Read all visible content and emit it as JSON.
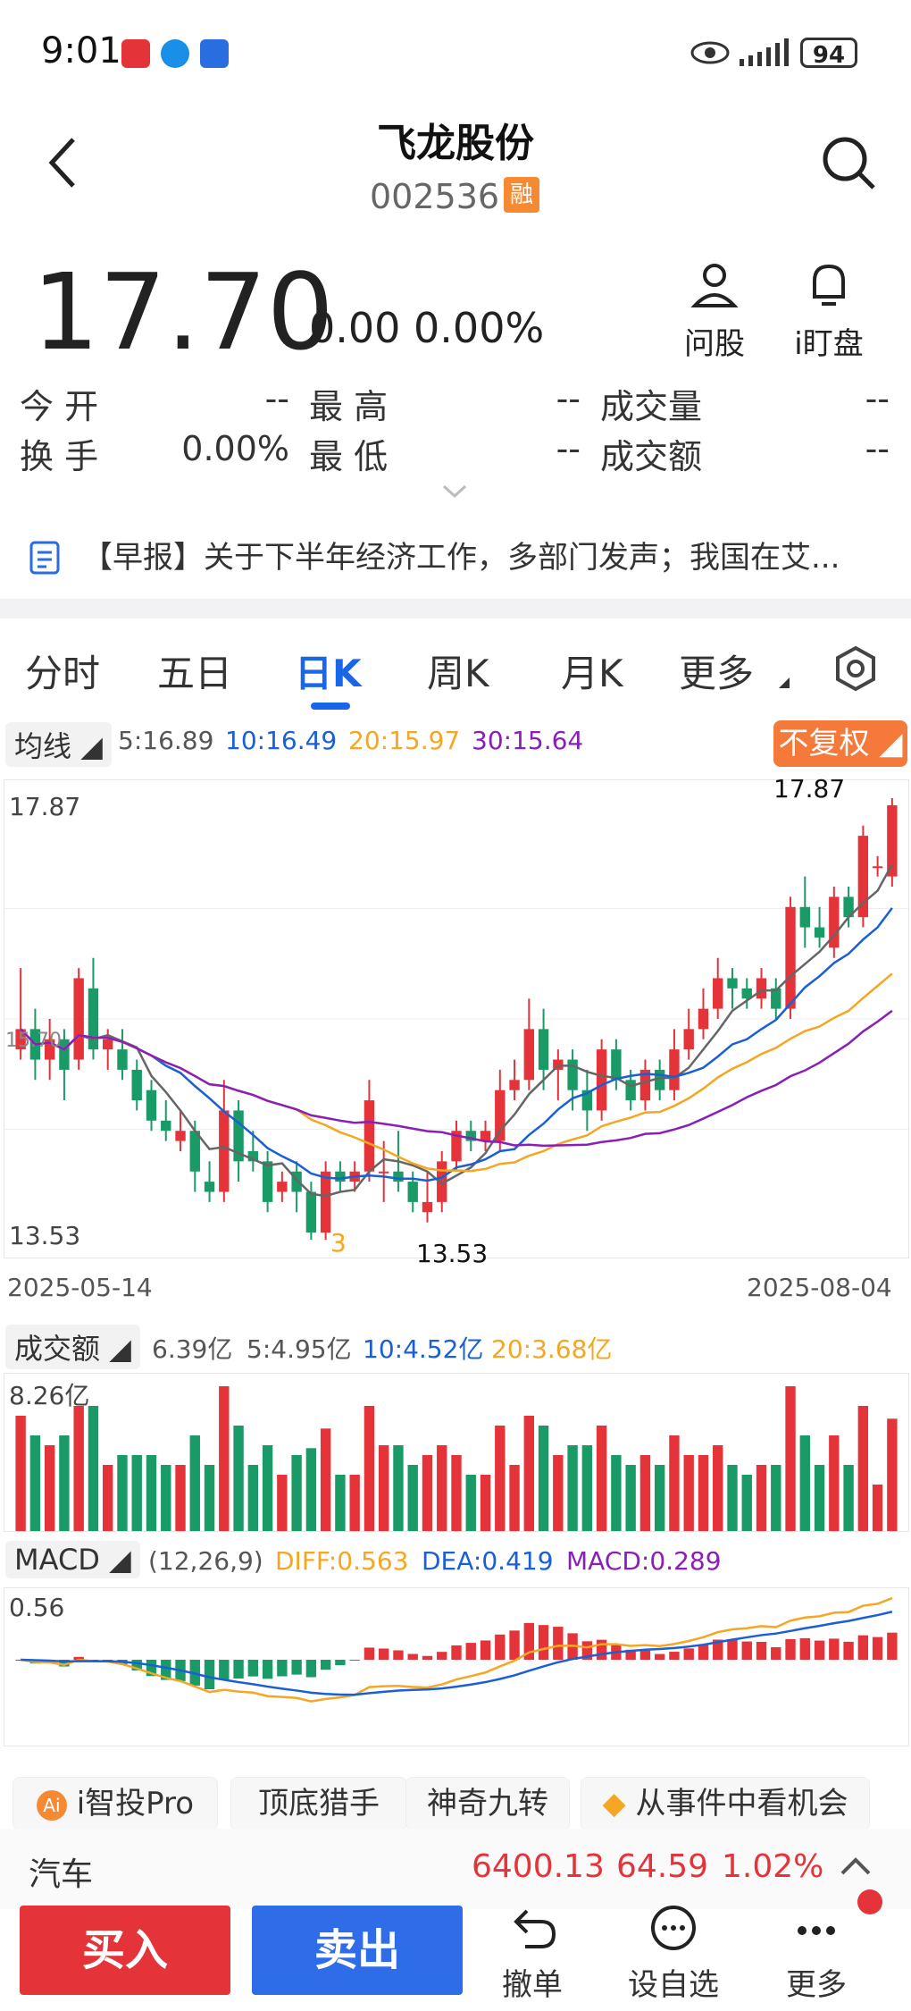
{
  "status": {
    "time": "9:01",
    "battery": "94"
  },
  "header": {
    "title": "飞龙股份",
    "code": "002536",
    "badge": "融"
  },
  "quote": {
    "price": "17.70",
    "change": "0.00 0.00%",
    "ask_label": "问股",
    "watch_label": "i盯盘",
    "open_label": "今  开",
    "open_val": "--",
    "high_label": "最  高",
    "high_val": "--",
    "vol_label": "成交量",
    "vol_val": "--",
    "turnover_label": "换  手",
    "turnover_val": "0.00%",
    "low_label": "最  低",
    "low_val": "--",
    "amount_label": "成交额",
    "amount_val": "--"
  },
  "news": {
    "text": "【早报】关于下半年经济工作，多部门发声；我国在艾..."
  },
  "tabs": [
    "分时",
    "五日",
    "日K",
    "周K",
    "月K",
    "更多"
  ],
  "active_tab": "日K",
  "ma": {
    "label": "均线",
    "ma5": "5:16.89",
    "ma10": "10:16.49",
    "ma20": "20:15.97",
    "ma30": "30:15.64",
    "fuquan": "不复权"
  },
  "kline": {
    "max_label": "17.87",
    "min_label": "13.53",
    "max_marker": "17.87",
    "min_marker": "13.53",
    "start_date": "2025-05-14",
    "end_date": "2025-08-04",
    "mid_label": "15.70",
    "count_label": "3"
  },
  "volume": {
    "label": "成交额",
    "v": "6.39亿",
    "ma5": "5:4.95亿",
    "ma10": "10:4.52亿",
    "ma20": "20:3.68亿",
    "max_label": "8.26亿"
  },
  "macd": {
    "label": "MACD",
    "params": "(12,26,9)",
    "diff": "DIFF:0.563",
    "dea": "DEA:0.419",
    "macd": "MACD:0.289",
    "max_label": "0.56"
  },
  "features": [
    "i智投Pro",
    "顶底猎手",
    "神奇九转",
    "从事件中看机会"
  ],
  "sector": {
    "name": "汽车",
    "index": "6400.13",
    "change": "64.59",
    "pct": "1.02%"
  },
  "bottom": {
    "buy": "买入",
    "sell": "卖出",
    "cancel": "撤单",
    "fav": "设自选",
    "more": "更多"
  },
  "colors": {
    "up": "#e5333a",
    "down": "#1a9a66",
    "ma5": "#666666",
    "ma10": "#1a5fd6",
    "ma20": "#f5a623",
    "ma30": "#8a1fb8",
    "accent": "#1a66e8"
  },
  "chart_data": {
    "type": "candlestick",
    "x_range": [
      "2025-05-14",
      "2025-08-04"
    ],
    "ylim": [
      13.53,
      17.87
    ],
    "candles": [
      {
        "o": 15.4,
        "c": 15.6,
        "h": 16.2,
        "l": 15.3
      },
      {
        "o": 15.6,
        "c": 15.3,
        "h": 15.8,
        "l": 15.1
      },
      {
        "o": 15.3,
        "c": 15.5,
        "h": 15.7,
        "l": 15.1
      },
      {
        "o": 15.5,
        "c": 15.2,
        "h": 15.6,
        "l": 14.9
      },
      {
        "o": 15.3,
        "c": 16.1,
        "h": 16.2,
        "l": 15.2
      },
      {
        "o": 16.0,
        "c": 15.4,
        "h": 16.3,
        "l": 15.3
      },
      {
        "o": 15.4,
        "c": 15.5,
        "h": 15.6,
        "l": 15.2
      },
      {
        "o": 15.4,
        "c": 15.2,
        "h": 15.6,
        "l": 15.1
      },
      {
        "o": 15.2,
        "c": 14.9,
        "h": 15.3,
        "l": 14.8
      },
      {
        "o": 15.0,
        "c": 14.7,
        "h": 15.1,
        "l": 14.6
      },
      {
        "o": 14.7,
        "c": 14.6,
        "h": 14.9,
        "l": 14.5
      },
      {
        "o": 14.5,
        "c": 14.6,
        "h": 14.8,
        "l": 14.4
      },
      {
        "o": 14.6,
        "c": 14.2,
        "h": 14.7,
        "l": 14.0
      },
      {
        "o": 14.1,
        "c": 14.0,
        "h": 14.3,
        "l": 13.9
      },
      {
        "o": 14.0,
        "c": 14.8,
        "h": 15.1,
        "l": 13.9
      },
      {
        "o": 14.8,
        "c": 14.3,
        "h": 14.9,
        "l": 14.1
      },
      {
        "o": 14.4,
        "c": 14.3,
        "h": 14.6,
        "l": 14.2
      },
      {
        "o": 14.3,
        "c": 13.9,
        "h": 14.4,
        "l": 13.8
      },
      {
        "o": 14.0,
        "c": 14.1,
        "h": 14.2,
        "l": 13.9
      },
      {
        "o": 14.2,
        "c": 14.0,
        "h": 14.3,
        "l": 13.8
      },
      {
        "o": 14.0,
        "c": 13.6,
        "h": 14.1,
        "l": 13.53
      },
      {
        "o": 13.6,
        "c": 14.2,
        "h": 14.3,
        "l": 13.53
      },
      {
        "o": 14.2,
        "c": 14.1,
        "h": 14.3,
        "l": 14.0
      },
      {
        "o": 14.1,
        "c": 14.2,
        "h": 14.3,
        "l": 14.0
      },
      {
        "o": 14.2,
        "c": 14.9,
        "h": 15.1,
        "l": 14.1
      },
      {
        "o": 14.2,
        "c": 14.2,
        "h": 14.5,
        "l": 13.9
      },
      {
        "o": 14.2,
        "c": 14.1,
        "h": 14.6,
        "l": 14.0
      },
      {
        "o": 14.1,
        "c": 13.9,
        "h": 14.2,
        "l": 13.8
      },
      {
        "o": 13.8,
        "c": 13.9,
        "h": 14.2,
        "l": 13.7
      },
      {
        "o": 13.9,
        "c": 14.3,
        "h": 14.4,
        "l": 13.8
      },
      {
        "o": 14.3,
        "c": 14.6,
        "h": 14.7,
        "l": 14.2
      },
      {
        "o": 14.6,
        "c": 14.5,
        "h": 14.7,
        "l": 14.4
      },
      {
        "o": 14.5,
        "c": 14.6,
        "h": 14.7,
        "l": 14.4
      },
      {
        "o": 14.5,
        "c": 15.0,
        "h": 15.2,
        "l": 14.4
      },
      {
        "o": 15.0,
        "c": 15.1,
        "h": 15.3,
        "l": 14.9
      },
      {
        "o": 15.1,
        "c": 15.6,
        "h": 15.9,
        "l": 15.0
      },
      {
        "o": 15.6,
        "c": 15.2,
        "h": 15.8,
        "l": 15.0
      },
      {
        "o": 15.2,
        "c": 15.3,
        "h": 15.4,
        "l": 14.9
      },
      {
        "o": 15.3,
        "c": 15.0,
        "h": 15.4,
        "l": 14.8
      },
      {
        "o": 15.0,
        "c": 14.8,
        "h": 15.2,
        "l": 14.6
      },
      {
        "o": 14.8,
        "c": 15.4,
        "h": 15.5,
        "l": 14.7
      },
      {
        "o": 15.4,
        "c": 15.1,
        "h": 15.5,
        "l": 15.0
      },
      {
        "o": 15.1,
        "c": 14.9,
        "h": 15.2,
        "l": 14.8
      },
      {
        "o": 14.9,
        "c": 15.2,
        "h": 15.3,
        "l": 14.8
      },
      {
        "o": 15.2,
        "c": 15.0,
        "h": 15.3,
        "l": 14.9
      },
      {
        "o": 15.0,
        "c": 15.4,
        "h": 15.6,
        "l": 14.9
      },
      {
        "o": 15.4,
        "c": 15.6,
        "h": 15.8,
        "l": 15.3
      },
      {
        "o": 15.6,
        "c": 15.8,
        "h": 16.0,
        "l": 15.5
      },
      {
        "o": 15.8,
        "c": 16.1,
        "h": 16.3,
        "l": 15.7
      },
      {
        "o": 16.1,
        "c": 16.0,
        "h": 16.2,
        "l": 15.8
      },
      {
        "o": 16.0,
        "c": 15.9,
        "h": 16.1,
        "l": 15.8
      },
      {
        "o": 15.9,
        "c": 16.1,
        "h": 16.2,
        "l": 15.8
      },
      {
        "o": 16.0,
        "c": 15.8,
        "h": 16.1,
        "l": 15.7
      },
      {
        "o": 15.8,
        "c": 16.8,
        "h": 16.9,
        "l": 15.7
      },
      {
        "o": 16.8,
        "c": 16.6,
        "h": 17.1,
        "l": 16.4
      },
      {
        "o": 16.6,
        "c": 16.5,
        "h": 16.8,
        "l": 16.4
      },
      {
        "o": 16.4,
        "c": 16.9,
        "h": 17.0,
        "l": 16.3
      },
      {
        "o": 16.9,
        "c": 16.7,
        "h": 17.0,
        "l": 16.6
      },
      {
        "o": 16.7,
        "c": 17.5,
        "h": 17.6,
        "l": 16.6
      },
      {
        "o": 17.2,
        "c": 17.2,
        "h": 17.3,
        "l": 17.1
      },
      {
        "o": 17.1,
        "c": 17.8,
        "h": 17.87,
        "l": 17.0
      }
    ]
  }
}
